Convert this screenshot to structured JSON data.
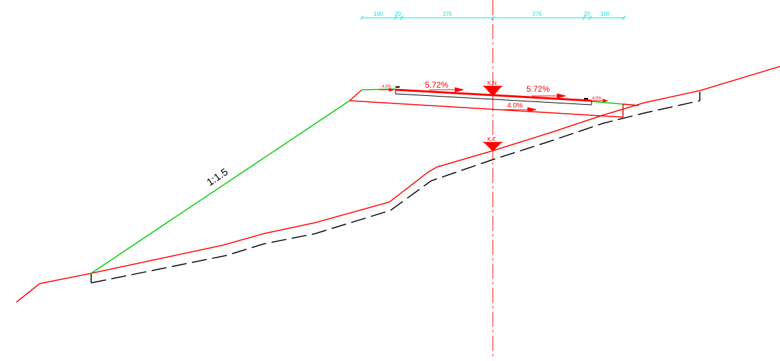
{
  "colors": {
    "ground": "#ff0000",
    "slope": "#00cc00",
    "road": "#ff0000",
    "subgrade": "#000000",
    "dimension": "#00e5e5",
    "centerline": "#ff0000"
  },
  "dimensions": {
    "segments": [
      "100",
      "20",
      "275",
      "275",
      "20",
      "100"
    ]
  },
  "slope_label": "1:1.5",
  "grades": {
    "left_main": "5.72%",
    "right_main": "5.72%",
    "left_shoulder": "4.0%",
    "right_shoulder": "4.0%",
    "bottom": "4.0%"
  },
  "markers": {
    "top": "K.N.",
    "bottom": "K.T."
  }
}
